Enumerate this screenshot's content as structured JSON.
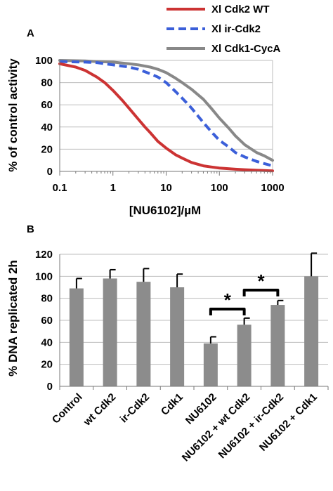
{
  "chart_data": [
    {
      "panel_label": "A",
      "type": "line",
      "xscale": "log",
      "xlim": [
        0.1,
        1000
      ],
      "ylim": [
        0,
        100
      ],
      "xticks": [
        "0.1",
        "1",
        "10",
        "100",
        "1000"
      ],
      "yticks": [
        "0",
        "20",
        "40",
        "60",
        "80",
        "100"
      ],
      "xlabel": "[NU6102]/µM",
      "ylabel": "% of control activity",
      "grid": "horizontal",
      "legend_position": "top-right",
      "series": [
        {
          "name": "Xl Cdk2 WT",
          "color": "#cc3333",
          "style": "solid",
          "x": [
            0.1,
            0.2,
            0.3,
            0.5,
            0.7,
            1,
            1.5,
            2,
            3,
            4,
            5,
            7,
            10,
            15,
            20,
            30,
            50,
            70,
            100,
            200,
            300,
            500,
            1000
          ],
          "y": [
            97,
            94,
            91,
            85,
            80,
            73,
            64,
            57,
            47,
            40,
            35,
            27,
            21,
            15,
            12,
            8,
            5,
            4,
            3,
            2,
            1.5,
            1,
            0.5
          ]
        },
        {
          "name": "Xl ir-Cdk2",
          "color": "#3b5fd9",
          "style": "dashed",
          "x": [
            0.1,
            0.3,
            0.5,
            1,
            2,
            3,
            5,
            7,
            10,
            15,
            20,
            30,
            50,
            70,
            100,
            150,
            200,
            300,
            500,
            700,
            1000
          ],
          "y": [
            99,
            98.5,
            98,
            96,
            94,
            92,
            88,
            85,
            80,
            72,
            66,
            57,
            44,
            36,
            28,
            22,
            17,
            13,
            9,
            7,
            5
          ]
        },
        {
          "name": "Xl Cdk1-CycA",
          "color": "#888888",
          "style": "solid",
          "x": [
            0.1,
            0.3,
            0.5,
            1,
            2,
            3,
            5,
            7,
            10,
            15,
            20,
            30,
            50,
            70,
            100,
            150,
            200,
            300,
            500,
            700,
            1000
          ],
          "y": [
            100,
            99.5,
            99,
            98.5,
            97,
            96,
            94,
            92,
            89,
            84,
            80,
            74,
            65,
            57,
            48,
            39,
            32,
            24,
            17,
            14,
            10
          ]
        }
      ]
    },
    {
      "panel_label": "B",
      "type": "bar",
      "categories": [
        "Control",
        "wt Cdk2",
        "ir-Cdk2",
        "Cdk1",
        "NU6102",
        "NU6102 + wt Cdk2",
        "NU6102 + ir-Cdk2",
        "NU6102 + Cdk1"
      ],
      "values": [
        89,
        98,
        95,
        90,
        39,
        56,
        74,
        100
      ],
      "errors": [
        9,
        8,
        12,
        12,
        6,
        6,
        4,
        21
      ],
      "bar_color": "#8c8c8c",
      "ylim": [
        0,
        120
      ],
      "yticks": [
        "0",
        "20",
        "40",
        "60",
        "80",
        "100",
        "120"
      ],
      "ylabel": "% DNA replicated 2h",
      "grid": "horizontal",
      "significance": [
        {
          "from": 4,
          "to": 5,
          "label": "*"
        },
        {
          "from": 5,
          "to": 6,
          "label": "*"
        }
      ]
    }
  ]
}
